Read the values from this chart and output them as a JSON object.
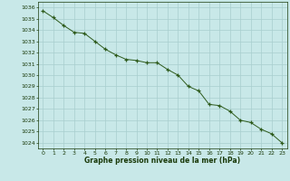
{
  "x": [
    0,
    1,
    2,
    3,
    4,
    5,
    6,
    7,
    8,
    9,
    10,
    11,
    12,
    13,
    14,
    15,
    16,
    17,
    18,
    19,
    20,
    21,
    22,
    23
  ],
  "y": [
    1035.7,
    1035.1,
    1034.4,
    1033.8,
    1033.7,
    1033.0,
    1032.3,
    1031.8,
    1031.4,
    1031.3,
    1031.1,
    1031.1,
    1030.5,
    1030.0,
    1029.0,
    1028.6,
    1027.4,
    1027.3,
    1026.8,
    1026.0,
    1025.8,
    1025.2,
    1024.8,
    1024.0
  ],
  "line_color": "#2d5a1b",
  "marker": "+",
  "bg_color": "#c8e8e8",
  "grid_color": "#a8cece",
  "text_color": "#1a3a0a",
  "xlabel": "Graphe pression niveau de la mer (hPa)",
  "ylim_min": 1023.5,
  "ylim_max": 1036.5,
  "xlim_min": -0.5,
  "xlim_max": 23.5,
  "yticks": [
    1024,
    1025,
    1026,
    1027,
    1028,
    1029,
    1030,
    1031,
    1032,
    1033,
    1034,
    1035,
    1036
  ],
  "xticks": [
    0,
    1,
    2,
    3,
    4,
    5,
    6,
    7,
    8,
    9,
    10,
    11,
    12,
    13,
    14,
    15,
    16,
    17,
    18,
    19,
    20,
    21,
    22,
    23
  ]
}
